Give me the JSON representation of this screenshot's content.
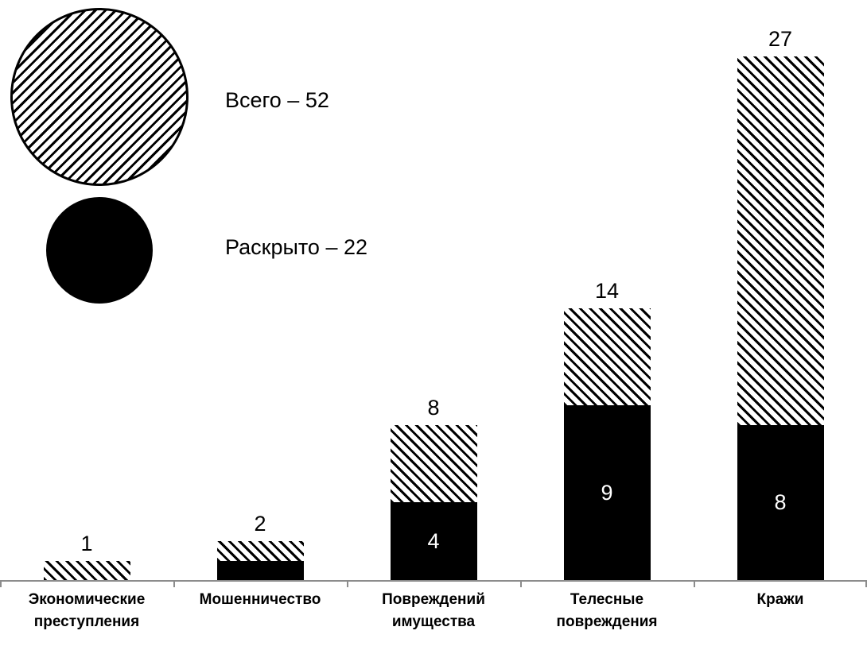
{
  "chart_data": {
    "type": "bar",
    "subtype": "stacked",
    "title": "",
    "xlabel": "",
    "ylabel": "",
    "categories": [
      "Экономические преступления",
      "Мошенничество",
      "Повреждений имущества",
      "Телесные повреждения",
      "Кражи"
    ],
    "series": [
      {
        "name": "Всего",
        "style": "hatched",
        "values": [
          1,
          2,
          8,
          14,
          27
        ]
      },
      {
        "name": "Раскрыто",
        "style": "solid-black",
        "values": [
          0,
          1,
          4,
          9,
          8
        ]
      }
    ],
    "bar_total_labels": [
      "1",
      "2",
      "8",
      "14",
      "27"
    ],
    "bar_solved_inside_labels": [
      "",
      "",
      "4",
      "9",
      "8"
    ],
    "ylim": [
      0,
      27
    ],
    "grid": false,
    "legend_position": "top-left",
    "x_baseline_visible": true,
    "y_axis_visible": false
  },
  "legend": {
    "total_label": "Всего – 52",
    "solved_label": "Раскрыто – 22"
  },
  "colors": {
    "bar_fill": "#000000",
    "hatch_line": "#000000",
    "background": "#ffffff",
    "axis_line": "#8c8c8c",
    "inside_label_text": "#ffffff",
    "text": "#000000"
  }
}
